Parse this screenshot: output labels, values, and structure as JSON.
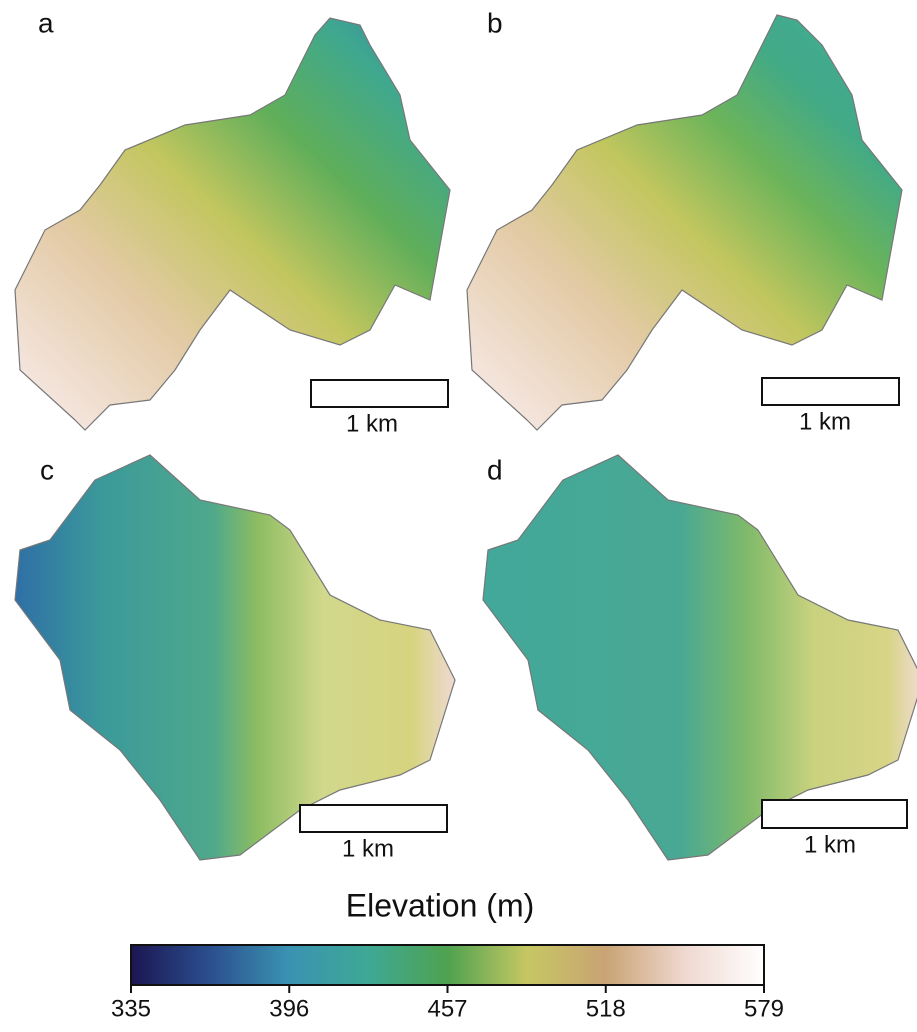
{
  "panels": [
    {
      "label": "a",
      "scale_label": "1 km"
    },
    {
      "label": "b",
      "scale_label": "1 km"
    },
    {
      "label": "c",
      "scale_label": "1 km"
    },
    {
      "label": "d",
      "scale_label": "1 km"
    }
  ],
  "colorbar": {
    "title": "Elevation (m)",
    "lim": [
      335,
      579
    ],
    "ticks": [
      335,
      396,
      457,
      518,
      579
    ],
    "colors": [
      "#1b1652",
      "#2b4f8e",
      "#3a93b2",
      "#3fa895",
      "#4ea24f",
      "#c6c763",
      "#c9a374",
      "#efd8d0",
      "#ffffff"
    ]
  }
}
